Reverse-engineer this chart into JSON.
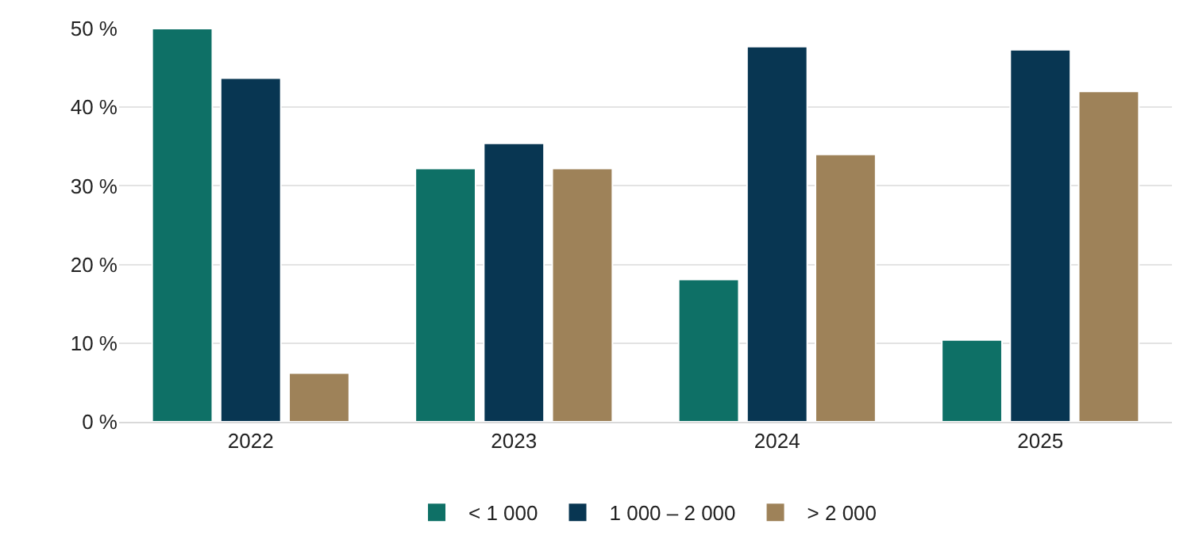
{
  "chart_data": {
    "type": "bar",
    "categories": [
      "2022",
      "2023",
      "2024",
      "2025"
    ],
    "series": [
      {
        "name": "< 1 000",
        "color": "#0e7066",
        "values": [
          50.0,
          32.2,
          18.1,
          10.4
        ]
      },
      {
        "name": "1 000 – 2 000",
        "color": "#083652",
        "values": [
          43.7,
          35.4,
          47.7,
          47.3
        ]
      },
      {
        "name": "> 2 000",
        "color": "#9e8259",
        "values": [
          6.2,
          32.2,
          34.0,
          42.0
        ]
      }
    ],
    "ylim": [
      0,
      50
    ],
    "yticks": [
      {
        "value": 0,
        "label": "0 %"
      },
      {
        "value": 10,
        "label": "10 %"
      },
      {
        "value": 20,
        "label": "20 %"
      },
      {
        "value": 30,
        "label": "30 %"
      },
      {
        "value": 40,
        "label": "40 %"
      },
      {
        "value": 50,
        "label": "50 %"
      }
    ],
    "grid": "y",
    "legend": "bottom"
  }
}
